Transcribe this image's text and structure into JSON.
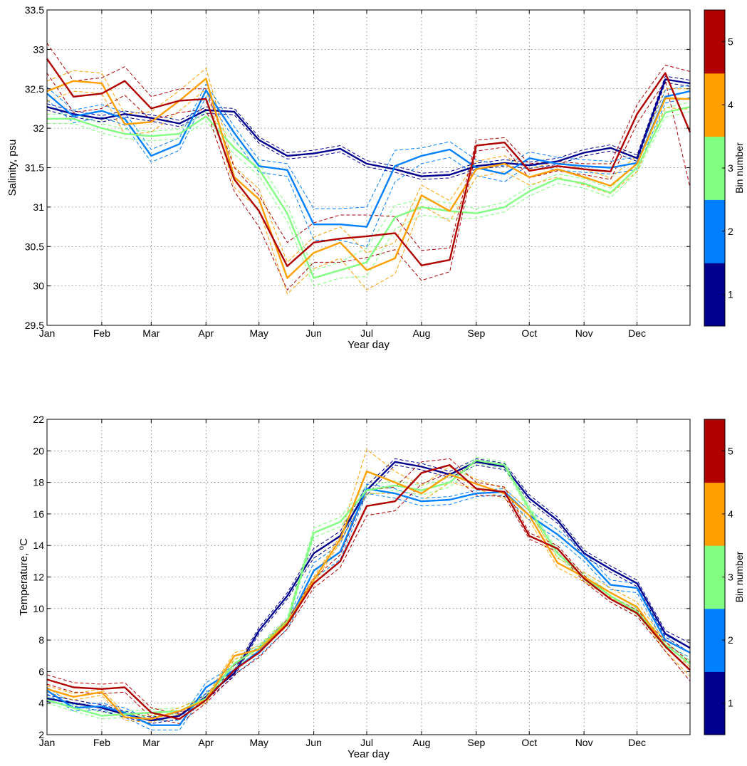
{
  "chart_data": [
    {
      "type": "line",
      "xlabel": "Year day",
      "ylabel": "Salinity, psu",
      "ylim": [
        29.5,
        33.5
      ],
      "yticks": [
        29.5,
        30,
        30.5,
        31,
        31.5,
        32,
        32.5,
        33,
        33.5
      ],
      "ytick_labels": [
        "29.5",
        "30",
        "30.5",
        "31",
        "31.5",
        "32",
        "32.5",
        "33",
        "33.5"
      ],
      "xlim": [
        1,
        365
      ],
      "x_ticks": [
        1,
        32,
        60,
        91,
        121,
        152,
        182,
        213,
        244,
        274,
        305,
        335
      ],
      "x_tick_labels": [
        "Jan",
        "Feb",
        "Mar",
        "Apr",
        "May",
        "Jun",
        "Jul",
        "Aug",
        "Sep",
        "Oct",
        "Nov",
        "Dec"
      ],
      "grid": true,
      "colorbar": {
        "label": "Bin number",
        "ticks": [
          "1",
          "2",
          "3",
          "4",
          "5"
        ],
        "colors": [
          "#00008f",
          "#0080ff",
          "#80ff80",
          "#ff9f00",
          "#b00000"
        ]
      },
      "line_style": "solid = mean, dashed = confidence bounds",
      "x": [
        1,
        16,
        32,
        45,
        60,
        76,
        91,
        107,
        121,
        137,
        152,
        167,
        182,
        198,
        213,
        229,
        244,
        260,
        274,
        290,
        305,
        320,
        335,
        351,
        365
      ],
      "series": [
        {
          "bin": 1,
          "color": "#00008f",
          "values": [
            32.27,
            32.18,
            32.12,
            32.18,
            32.13,
            32.06,
            32.23,
            32.21,
            31.85,
            31.65,
            31.68,
            31.74,
            31.55,
            31.48,
            31.39,
            31.41,
            31.52,
            31.56,
            31.53,
            31.58,
            31.69,
            31.75,
            31.62,
            32.62,
            32.57
          ],
          "upper": [
            32.31,
            32.22,
            32.16,
            32.22,
            32.17,
            32.1,
            32.27,
            32.25,
            31.89,
            31.69,
            31.72,
            31.78,
            31.59,
            31.52,
            31.43,
            31.45,
            31.56,
            31.6,
            31.57,
            31.62,
            31.73,
            31.79,
            31.66,
            32.66,
            32.61
          ],
          "lower": [
            32.23,
            32.14,
            32.08,
            32.14,
            32.09,
            32.02,
            32.19,
            32.17,
            31.81,
            31.61,
            31.64,
            31.7,
            31.51,
            31.44,
            31.35,
            31.37,
            31.48,
            31.52,
            31.49,
            31.54,
            31.65,
            31.71,
            31.58,
            32.58,
            32.53
          ]
        },
        {
          "bin": 2,
          "color": "#0080ff",
          "values": [
            32.44,
            32.15,
            32.22,
            32.12,
            31.65,
            31.8,
            32.48,
            31.94,
            31.52,
            31.47,
            30.78,
            30.78,
            30.75,
            31.52,
            31.65,
            31.73,
            31.5,
            31.42,
            31.62,
            31.55,
            31.52,
            31.5,
            31.56,
            32.4,
            32.47
          ],
          "upper": [
            32.52,
            32.23,
            32.3,
            32.2,
            31.73,
            31.88,
            32.56,
            32.02,
            31.6,
            31.55,
            30.98,
            30.98,
            31.0,
            31.72,
            31.75,
            31.83,
            31.6,
            31.52,
            31.7,
            31.63,
            31.6,
            31.58,
            31.64,
            32.48,
            32.55
          ],
          "lower": [
            32.36,
            32.07,
            32.14,
            32.04,
            31.57,
            31.72,
            32.4,
            31.86,
            31.44,
            31.39,
            30.58,
            30.58,
            30.5,
            31.32,
            31.55,
            31.63,
            31.4,
            31.32,
            31.54,
            31.47,
            31.44,
            31.42,
            31.48,
            32.32,
            32.39
          ]
        },
        {
          "bin": 3,
          "color": "#80ff80",
          "values": [
            32.12,
            32.12,
            32.0,
            31.93,
            31.9,
            31.93,
            32.15,
            31.75,
            31.48,
            30.92,
            30.1,
            30.2,
            30.3,
            30.87,
            31.0,
            30.95,
            30.92,
            31.0,
            31.2,
            31.36,
            31.3,
            31.18,
            31.5,
            32.2,
            32.27
          ],
          "upper": [
            32.18,
            32.18,
            32.06,
            31.99,
            31.96,
            31.99,
            32.21,
            31.83,
            31.56,
            31.02,
            30.2,
            30.3,
            30.48,
            31.02,
            31.1,
            31.05,
            30.98,
            31.06,
            31.26,
            31.42,
            31.36,
            31.24,
            31.56,
            32.26,
            32.33
          ],
          "lower": [
            32.06,
            32.06,
            31.94,
            31.87,
            31.84,
            31.87,
            32.09,
            31.67,
            31.4,
            30.82,
            30.0,
            30.1,
            30.12,
            30.72,
            30.9,
            30.85,
            30.86,
            30.94,
            31.14,
            31.3,
            31.24,
            31.12,
            31.44,
            32.14,
            32.21
          ]
        },
        {
          "bin": 4,
          "color": "#ff9f00",
          "values": [
            32.47,
            32.6,
            32.57,
            32.05,
            32.08,
            32.35,
            32.63,
            31.38,
            31.1,
            30.1,
            30.42,
            30.55,
            30.2,
            30.35,
            31.15,
            30.95,
            31.48,
            31.55,
            31.38,
            31.48,
            31.38,
            31.27,
            31.55,
            32.38,
            32.37
          ],
          "upper": [
            32.6,
            32.73,
            32.7,
            32.18,
            32.21,
            32.48,
            32.76,
            31.51,
            31.23,
            30.3,
            30.62,
            30.75,
            30.42,
            30.55,
            31.28,
            31.08,
            31.58,
            31.65,
            31.48,
            31.58,
            31.48,
            31.37,
            31.65,
            32.5,
            32.5
          ],
          "lower": [
            32.34,
            32.47,
            32.44,
            31.92,
            31.95,
            32.22,
            32.5,
            31.25,
            30.97,
            29.9,
            30.22,
            30.35,
            29.95,
            30.15,
            31.02,
            30.82,
            31.38,
            31.45,
            31.28,
            31.38,
            31.28,
            31.17,
            31.45,
            32.26,
            32.24
          ]
        },
        {
          "bin": 5,
          "color": "#b00000",
          "values": [
            32.88,
            32.4,
            32.44,
            32.6,
            32.25,
            32.35,
            32.37,
            31.35,
            30.95,
            30.25,
            30.55,
            30.6,
            30.63,
            30.67,
            30.26,
            30.33,
            31.78,
            31.82,
            31.46,
            31.52,
            31.48,
            31.45,
            32.18,
            32.7,
            31.95
          ],
          "upper": [
            33.08,
            32.6,
            32.64,
            32.78,
            32.4,
            32.5,
            32.5,
            31.5,
            31.15,
            30.55,
            30.8,
            30.9,
            30.9,
            30.88,
            30.45,
            30.48,
            31.85,
            31.88,
            31.55,
            31.58,
            31.55,
            31.55,
            32.3,
            32.8,
            32.72
          ],
          "lower": [
            32.7,
            32.2,
            32.25,
            32.42,
            32.1,
            32.2,
            32.24,
            31.2,
            30.75,
            29.95,
            30.3,
            30.3,
            30.36,
            30.46,
            30.07,
            30.18,
            31.71,
            31.76,
            31.37,
            31.46,
            31.41,
            31.35,
            32.06,
            32.6,
            31.25
          ]
        }
      ]
    },
    {
      "type": "line",
      "xlabel": "Year day",
      "ylabel": "Temperature, ",
      "ylabel_unit": "C",
      "ylabel_sup": "o",
      "ylim": [
        2,
        22
      ],
      "yticks": [
        2,
        4,
        6,
        8,
        10,
        12,
        14,
        16,
        18,
        20,
        22
      ],
      "ytick_labels": [
        "2",
        "4",
        "6",
        "8",
        "10",
        "12",
        "14",
        "16",
        "18",
        "20",
        "22"
      ],
      "xlim": [
        1,
        365
      ],
      "x_ticks": [
        1,
        32,
        60,
        91,
        121,
        152,
        182,
        213,
        244,
        274,
        305,
        335
      ],
      "x_tick_labels": [
        "Jan",
        "Feb",
        "Mar",
        "Apr",
        "May",
        "Jun",
        "Jul",
        "Aug",
        "Sep",
        "Oct",
        "Nov",
        "Dec"
      ],
      "grid": true,
      "colorbar": {
        "label": "Bin number",
        "ticks": [
          "1",
          "2",
          "3",
          "4",
          "5"
        ],
        "colors": [
          "#00008f",
          "#0080ff",
          "#80ff80",
          "#ff9f00",
          "#b00000"
        ]
      },
      "line_style": "solid = mean, dashed = confidence bounds",
      "x": [
        1,
        16,
        32,
        45,
        60,
        76,
        91,
        107,
        121,
        137,
        152,
        167,
        182,
        198,
        213,
        229,
        244,
        260,
        274,
        290,
        305,
        320,
        335,
        351,
        365
      ],
      "series": [
        {
          "bin": 1,
          "color": "#00008f",
          "values": [
            4.3,
            4.0,
            3.7,
            3.3,
            2.9,
            3.2,
            4.4,
            5.9,
            8.6,
            10.8,
            13.5,
            14.6,
            17.5,
            19.3,
            19.0,
            18.5,
            19.3,
            19.0,
            17.0,
            15.6,
            13.5,
            12.5,
            11.6,
            8.4,
            7.5
          ],
          "upper": [
            4.5,
            4.2,
            3.9,
            3.5,
            3.1,
            3.4,
            4.6,
            6.1,
            8.8,
            11.0,
            13.8,
            14.9,
            17.8,
            19.5,
            19.2,
            18.7,
            19.5,
            19.2,
            17.2,
            15.8,
            13.7,
            12.7,
            11.8,
            8.6,
            7.8
          ],
          "lower": [
            4.1,
            3.8,
            3.5,
            3.1,
            2.7,
            3.0,
            4.2,
            5.7,
            8.4,
            10.6,
            13.2,
            14.3,
            17.2,
            19.1,
            18.8,
            18.3,
            19.1,
            18.8,
            16.8,
            15.4,
            13.3,
            12.3,
            11.4,
            8.2,
            7.2
          ]
        },
        {
          "bin": 2,
          "color": "#0080ff",
          "values": [
            4.8,
            3.7,
            3.8,
            3.4,
            2.6,
            2.6,
            5.0,
            6.1,
            7.3,
            9.0,
            12.4,
            13.6,
            17.6,
            17.3,
            16.8,
            16.9,
            17.3,
            17.4,
            15.9,
            14.7,
            13.3,
            11.5,
            11.3,
            8.0,
            7.2
          ],
          "upper": [
            5.0,
            3.9,
            4.0,
            3.7,
            2.9,
            2.9,
            5.3,
            6.4,
            7.6,
            9.3,
            12.9,
            14.1,
            17.9,
            17.6,
            17.0,
            17.1,
            17.5,
            17.6,
            16.2,
            15.0,
            13.6,
            11.8,
            11.6,
            8.3,
            7.5
          ],
          "lower": [
            4.6,
            3.5,
            3.6,
            3.1,
            2.3,
            2.3,
            4.7,
            5.8,
            7.0,
            8.7,
            11.9,
            13.1,
            17.3,
            17.0,
            16.5,
            16.6,
            17.1,
            17.2,
            15.6,
            14.4,
            13.0,
            11.2,
            11.0,
            7.7,
            6.9
          ]
        },
        {
          "bin": 3,
          "color": "#80ff80",
          "values": [
            4.2,
            3.7,
            3.2,
            3.3,
            3.4,
            3.5,
            4.3,
            6.5,
            7.5,
            9.2,
            14.8,
            15.5,
            17.5,
            17.8,
            17.5,
            18.0,
            19.4,
            19.1,
            16.3,
            13.5,
            12.0,
            10.8,
            9.8,
            7.7,
            6.5
          ],
          "upper": [
            4.4,
            3.9,
            3.4,
            3.5,
            3.6,
            3.7,
            4.5,
            6.7,
            7.7,
            9.4,
            15.1,
            15.8,
            17.8,
            18.1,
            17.8,
            18.3,
            19.6,
            19.3,
            16.5,
            13.7,
            12.2,
            11.0,
            10.0,
            7.9,
            6.7
          ],
          "lower": [
            4.0,
            3.5,
            3.0,
            3.1,
            3.2,
            3.3,
            4.1,
            6.3,
            7.3,
            9.0,
            14.5,
            15.2,
            17.2,
            17.5,
            17.2,
            17.7,
            19.2,
            18.9,
            16.1,
            13.3,
            11.8,
            10.6,
            9.6,
            7.5,
            6.3
          ]
        },
        {
          "bin": 4,
          "color": "#ff9f00",
          "values": [
            4.9,
            4.4,
            4.7,
            3.1,
            3.0,
            3.5,
            4.2,
            7.0,
            7.4,
            9.1,
            11.8,
            14.4,
            18.7,
            18.0,
            17.3,
            18.5,
            17.9,
            17.3,
            15.9,
            12.9,
            12.0,
            11.0,
            10.1,
            7.6,
            6.1
          ],
          "upper": [
            5.1,
            4.6,
            4.9,
            3.3,
            3.2,
            3.7,
            4.4,
            7.2,
            7.6,
            9.3,
            12.0,
            14.6,
            20.1,
            18.7,
            17.8,
            19.0,
            18.2,
            17.6,
            16.2,
            13.2,
            12.3,
            11.3,
            10.4,
            7.9,
            6.3
          ],
          "lower": [
            4.7,
            4.2,
            4.5,
            2.9,
            2.8,
            3.3,
            4.0,
            6.8,
            7.2,
            8.9,
            11.6,
            14.2,
            17.3,
            17.3,
            16.8,
            18.0,
            17.6,
            17.0,
            15.6,
            12.6,
            11.7,
            10.7,
            9.8,
            7.3,
            5.7
          ]
        },
        {
          "bin": 5,
          "color": "#b00000",
          "values": [
            5.5,
            5.0,
            4.9,
            5.0,
            3.4,
            3.0,
            4.2,
            6.1,
            7.2,
            9.0,
            11.6,
            13.0,
            16.5,
            16.8,
            18.6,
            19.1,
            17.6,
            17.4,
            14.6,
            13.8,
            11.9,
            10.6,
            9.7,
            7.6,
            6.1
          ],
          "upper": [
            5.8,
            5.3,
            5.2,
            5.3,
            3.7,
            3.3,
            4.4,
            6.4,
            7.5,
            9.3,
            11.9,
            13.4,
            17.5,
            17.7,
            19.3,
            19.5,
            18.0,
            17.7,
            14.8,
            14.0,
            12.1,
            10.8,
            9.9,
            7.9,
            6.6
          ],
          "lower": [
            5.2,
            4.7,
            4.6,
            4.7,
            3.1,
            2.7,
            4.0,
            5.8,
            6.9,
            8.7,
            11.3,
            12.6,
            15.9,
            16.2,
            17.9,
            18.6,
            17.2,
            17.1,
            14.4,
            13.6,
            11.7,
            10.4,
            9.5,
            7.3,
            5.4
          ]
        }
      ]
    }
  ]
}
